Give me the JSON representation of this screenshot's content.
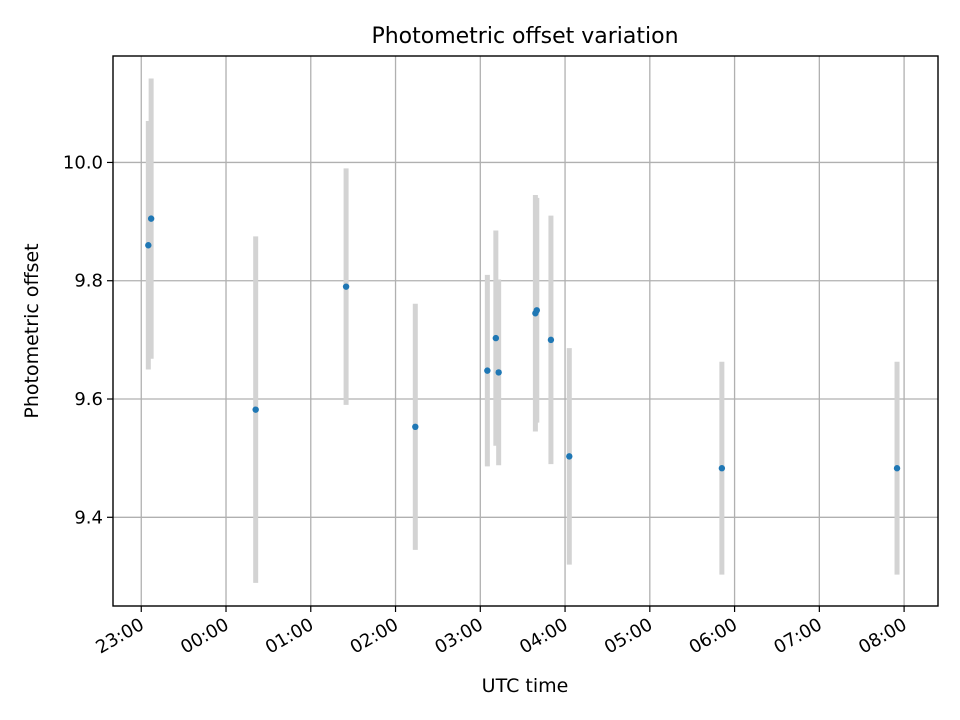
{
  "chart_data": {
    "type": "scatter",
    "title": "Photometric offset variation",
    "xlabel": "UTC time",
    "ylabel": "Photometric offset",
    "x_axis": {
      "kind": "time",
      "range": [
        "22:40",
        "08:24"
      ],
      "ticks": [
        "23:00",
        "00:00",
        "01:00",
        "02:00",
        "03:00",
        "04:00",
        "05:00",
        "06:00",
        "07:00",
        "08:00"
      ]
    },
    "ylim": [
      9.25,
      10.18
    ],
    "yticks": [
      9.4,
      9.6,
      9.8,
      10.0
    ],
    "ytick_labels": [
      "9.4",
      "9.6",
      "9.8",
      "10.0"
    ],
    "grid": true,
    "colors": {
      "point": "#1f77b4",
      "errorbar": "#d3d3d3",
      "grid": "#b0b0b0"
    },
    "series": [
      {
        "points": [
          {
            "x": "23:05",
            "y": 9.86,
            "yerr": 0.21
          },
          {
            "x": "23:07",
            "y": 9.905,
            "yerr": 0.237
          },
          {
            "x": "00:21",
            "y": 9.582,
            "yerr": 0.293
          },
          {
            "x": "01:25",
            "y": 9.79,
            "yerr": 0.2
          },
          {
            "x": "02:14",
            "y": 9.553,
            "yerr": 0.208
          },
          {
            "x": "03:05",
            "y": 9.648,
            "yerr": 0.162
          },
          {
            "x": "03:11",
            "y": 9.703,
            "yerr": 0.182
          },
          {
            "x": "03:13",
            "y": 9.645,
            "yerr": 0.157
          },
          {
            "x": "03:39",
            "y": 9.745,
            "yerr": 0.2
          },
          {
            "x": "03:40",
            "y": 9.75,
            "yerr": 0.19
          },
          {
            "x": "03:50",
            "y": 9.7,
            "yerr": 0.21
          },
          {
            "x": "04:03",
            "y": 9.503,
            "yerr": 0.183
          },
          {
            "x": "05:51",
            "y": 9.483,
            "yerr": 0.18
          },
          {
            "x": "07:55",
            "y": 9.483,
            "yerr": 0.18
          }
        ]
      }
    ]
  }
}
